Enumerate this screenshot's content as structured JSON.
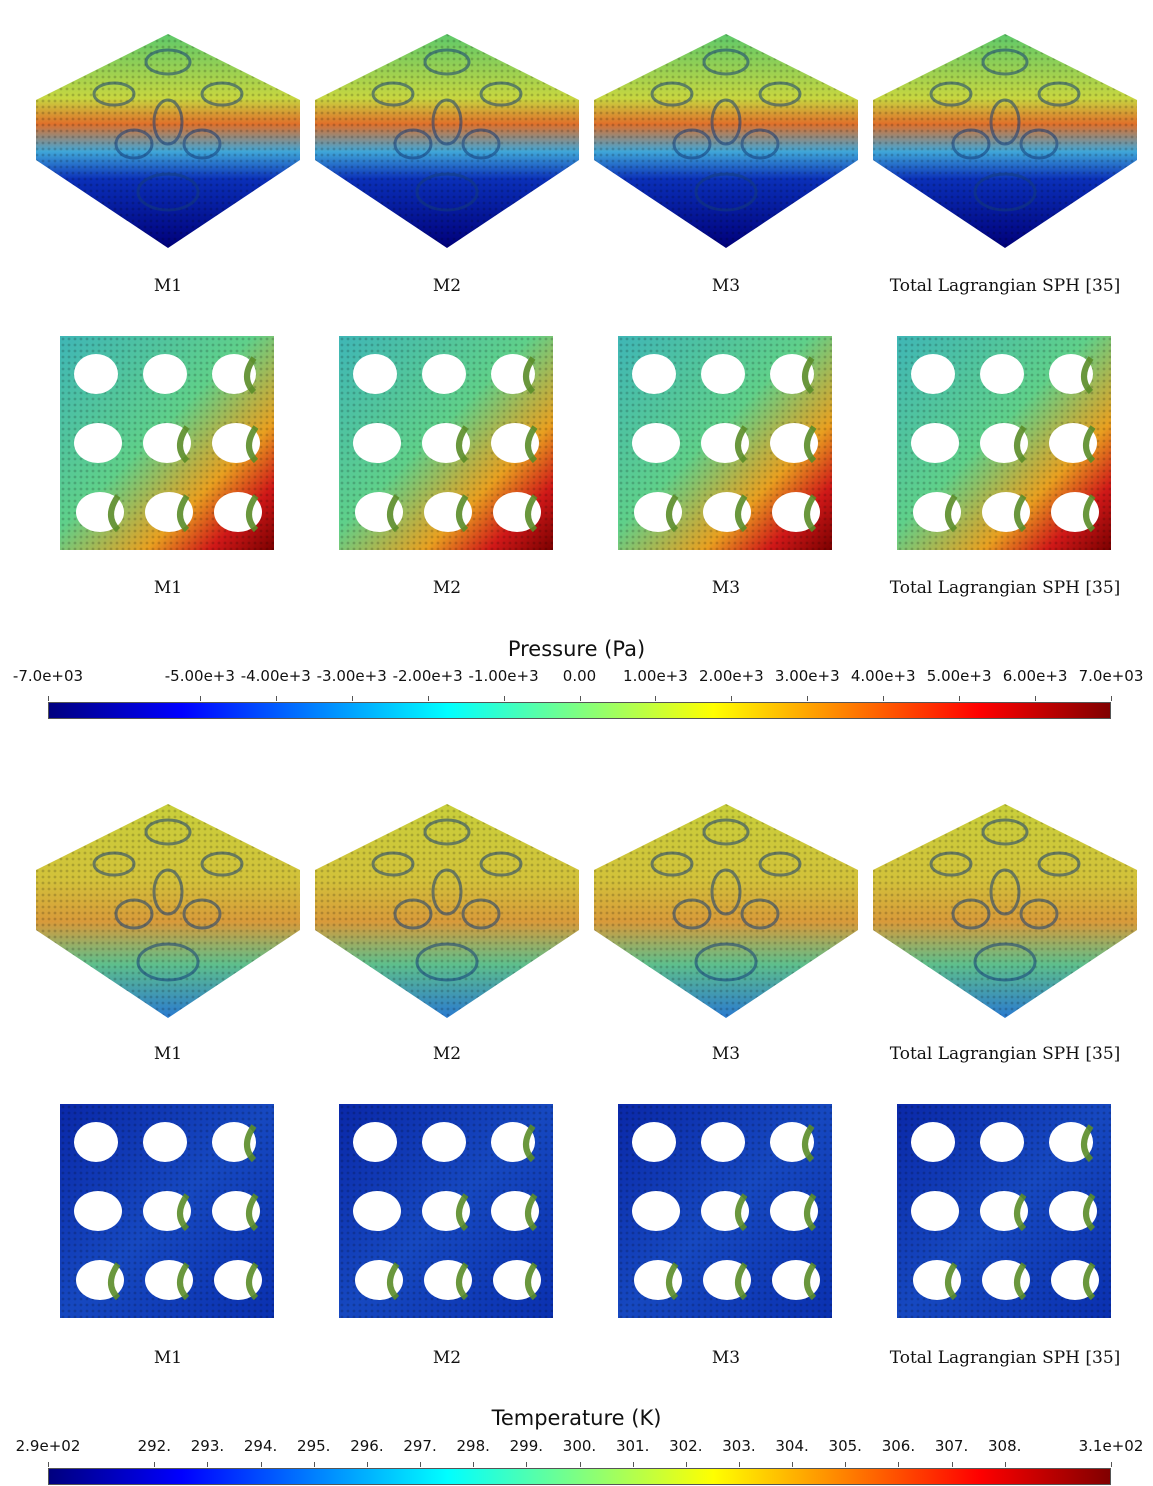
{
  "captions": [
    "M1",
    "M2",
    "M3",
    "Total Lagrangian SPH [35]"
  ],
  "pressure_colorbar": {
    "title": "Pressure (Pa)",
    "ticks": [
      {
        "label": "-7.0e+03",
        "value": -7000
      },
      {
        "label": "-5.00e+3",
        "value": -5000
      },
      {
        "label": "-4.00e+3",
        "value": -4000
      },
      {
        "label": "-3.00e+3",
        "value": -3000
      },
      {
        "label": "-2.00e+3",
        "value": -2000
      },
      {
        "label": "-1.00e+3",
        "value": -1000
      },
      {
        "label": "0.00",
        "value": 0
      },
      {
        "label": "1.00e+3",
        "value": 1000
      },
      {
        "label": "2.00e+3",
        "value": 2000
      },
      {
        "label": "3.00e+3",
        "value": 3000
      },
      {
        "label": "4.00e+3",
        "value": 4000
      },
      {
        "label": "5.00e+3",
        "value": 5000
      },
      {
        "label": "6.00e+3",
        "value": 6000
      },
      {
        "label": "7.0e+03",
        "value": 7000
      }
    ],
    "min": -7000,
    "max": 7000
  },
  "temperature_colorbar": {
    "title": "Temperature (K)",
    "ticks": [
      {
        "label": "2.9e+02",
        "value": 290
      },
      {
        "label": "292.",
        "value": 292
      },
      {
        "label": "293.",
        "value": 293
      },
      {
        "label": "294.",
        "value": 294
      },
      {
        "label": "295.",
        "value": 295
      },
      {
        "label": "296.",
        "value": 296
      },
      {
        "label": "297.",
        "value": 297
      },
      {
        "label": "298.",
        "value": 298
      },
      {
        "label": "299.",
        "value": 299
      },
      {
        "label": "300.",
        "value": 300
      },
      {
        "label": "301.",
        "value": 301
      },
      {
        "label": "302.",
        "value": 302
      },
      {
        "label": "303.",
        "value": 303
      },
      {
        "label": "304.",
        "value": 304
      },
      {
        "label": "305.",
        "value": 305
      },
      {
        "label": "306.",
        "value": 306
      },
      {
        "label": "307.",
        "value": 307
      },
      {
        "label": "308.",
        "value": 308
      },
      {
        "label": "3.1e+02",
        "value": 310
      }
    ],
    "min": 290,
    "max": 310
  },
  "colormap": [
    "#00007f",
    "#0000ff",
    "#0080ff",
    "#00ffff",
    "#80ff80",
    "#ffff00",
    "#ff8000",
    "#ff0000",
    "#7f0000"
  ]
}
